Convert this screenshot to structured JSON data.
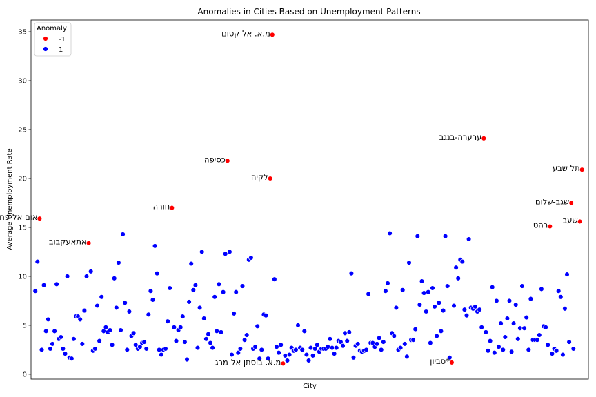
{
  "chart_data": {
    "type": "scatter",
    "title": "Anomalies in Cities Based on Unemployment Patterns",
    "xlabel": "City",
    "ylabel": "Average Unemployment Rate",
    "ylim": [
      -0.5,
      36.2
    ],
    "xlim": [
      -2,
      259
    ],
    "yticks": [
      0,
      5,
      10,
      15,
      20,
      25,
      30,
      35
    ],
    "grid": false,
    "legend": {
      "title": "Anomaly",
      "placement": "top-left",
      "entries": [
        {
          "label": "-1",
          "color": "#ff0000"
        },
        {
          "label": "1",
          "color": "#0000ff"
        }
      ]
    },
    "colors": {
      "anomaly": "#ff0000",
      "normal": "#0000ff"
    },
    "anomalies": [
      {
        "x": 2,
        "y": 15.9,
        "label": "אום אל-פחם"
      },
      {
        "x": 25,
        "y": 13.4,
        "label": "אתאעקבוב"
      },
      {
        "x": 64,
        "y": 17.0,
        "label": "חורה"
      },
      {
        "x": 90,
        "y": 21.8,
        "label": "כסיפה"
      },
      {
        "x": 110,
        "y": 20.0,
        "label": "לקיה"
      },
      {
        "x": 111,
        "y": 34.7,
        "label": "מ.א. אל קסום"
      },
      {
        "x": 116,
        "y": 1.1,
        "label": "מ.א. בוסתן אל-מרג"
      },
      {
        "x": 195,
        "y": 1.2,
        "label": "סביון*"
      },
      {
        "x": 210,
        "y": 24.1,
        "label": "ערערה-בנגב"
      },
      {
        "x": 241,
        "y": 15.1,
        "label": "רהט"
      },
      {
        "x": 251,
        "y": 17.5,
        "label": "שגב-שלום"
      },
      {
        "x": 255,
        "y": 15.6,
        "label": "שעב"
      },
      {
        "x": 256,
        "y": 20.9,
        "label": "תל שבע"
      }
    ],
    "normal_y": [
      8.5,
      11.5,
      2.5,
      9.1,
      4.4,
      5.6,
      2.6,
      3.1,
      4.4,
      9.2,
      3.6,
      3.8,
      2.6,
      2.1,
      10.0,
      1.7,
      1.6,
      3.6,
      5.9,
      5.9,
      5.6,
      3.1,
      6.5,
      10.0,
      10.5,
      2.4,
      2.6,
      7.0,
      3.4,
      7.9,
      4.4,
      4.8,
      4.3,
      4.5,
      3.0,
      9.8,
      6.8,
      11.4,
      4.5,
      14.3,
      7.3,
      2.5,
      6.4,
      3.9,
      4.2,
      3.0,
      2.6,
      2.8,
      3.2,
      3.3,
      2.6,
      6.1,
      8.5,
      7.6,
      13.1,
      10.3,
      2.5,
      2.0,
      2.5,
      2.6,
      5.4,
      8.8,
      4.8,
      3.4,
      4.5,
      4.8,
      5.9,
      3.3,
      1.5,
      7.4,
      11.3,
      8.6,
      9.1,
      2.7,
      6.8,
      12.5,
      5.7,
      3.6,
      4.1,
      3.2,
      2.7,
      7.9,
      4.4,
      9.2,
      4.3,
      8.4,
      12.3,
      12.5,
      2.0,
      6.2,
      8.4,
      2.2,
      2.6,
      9.0,
      3.5,
      4.0,
      11.7,
      11.9,
      2.6,
      2.8,
      4.9,
      1.6,
      2.5,
      6.1,
      6.0,
      1.6,
      9.7,
      2.8,
      2.2,
      3.0,
      1.9,
      1.4,
      2.0,
      2.7,
      2.4,
      2.5,
      5.0,
      2.7,
      2.5,
      4.4,
      2.0,
      1.4,
      2.7,
      1.9,
      2.6,
      3.0,
      2.3,
      2.6,
      2.6,
      2.6,
      2.8,
      3.6,
      2.7,
      2.1,
      2.7,
      3.4,
      3.3,
      2.9,
      4.2,
      3.4,
      4.3,
      10.3,
      1.7,
      2.9,
      3.1,
      2.4,
      2.3,
      2.4,
      2.5,
      8.2,
      3.2,
      3.2,
      2.8,
      3.1,
      3.7,
      2.5,
      3.3,
      8.5,
      9.3,
      14.4,
      4.2,
      3.9,
      6.8,
      2.5,
      2.7,
      8.6,
      3.1,
      1.8,
      11.4,
      3.5,
      3.5,
      4.6,
      14.1,
      7.1,
      9.5,
      8.3,
      6.4,
      8.4,
      3.2,
      8.8,
      6.9,
      3.9,
      7.3,
      4.4,
      6.5,
      14.1,
      9.0,
      1.7,
      7.0,
      10.9,
      9.8,
      11.7,
      11.5,
      6.6,
      6.0,
      13.8,
      6.8,
      6.7,
      6.9,
      6.4,
      6.6,
      4.8,
      4.3,
      2.4,
      3.4,
      8.9,
      2.2,
      7.5,
      2.8,
      5.2,
      2.5,
      3.8,
      5.7,
      7.5,
      2.3,
      5.2,
      7.1,
      3.6,
      4.7,
      9.0,
      4.7,
      5.8,
      2.5,
      7.7,
      3.5,
      3.5,
      3.5,
      4.0,
      8.7,
      4.9,
      4.8,
      3.0,
      2.1,
      2.6,
      2.4,
      8.5,
      7.9,
      2.0,
      6.7,
      10.2,
      3.3,
      2.6
    ]
  }
}
